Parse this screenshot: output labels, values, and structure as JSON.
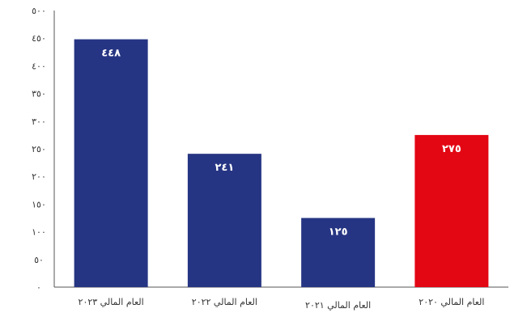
{
  "chart_data": {
    "type": "bar",
    "categories": [
      "العام المالي ٢٠٢٣",
      "العام المالي ٢٠٢٢",
      "العام المالي ٢٠٢١",
      "العام المالي ٢٠٢٠"
    ],
    "values": [
      448,
      241,
      125,
      275
    ],
    "data_labels": [
      "٤٤٨",
      "٢٤١",
      "١٢٥",
      "٢٧٥"
    ],
    "colors": [
      "#263583",
      "#263583",
      "#263583",
      "#e30613"
    ],
    "ylim": [
      0,
      500
    ],
    "yticks": [
      0,
      50,
      100,
      150,
      200,
      250,
      300,
      350,
      400,
      450,
      500
    ],
    "ytick_labels": [
      "٠",
      "٥٠",
      "١٠٠",
      "١٥٠",
      "٢٠٠",
      "٢٥٠",
      "٣٠٠",
      "٣٥٠",
      "٤٠٠",
      "٤٥٠",
      "٥٠٠"
    ],
    "title": "",
    "xlabel": "",
    "ylabel": "",
    "grid": false,
    "legend": "none"
  }
}
